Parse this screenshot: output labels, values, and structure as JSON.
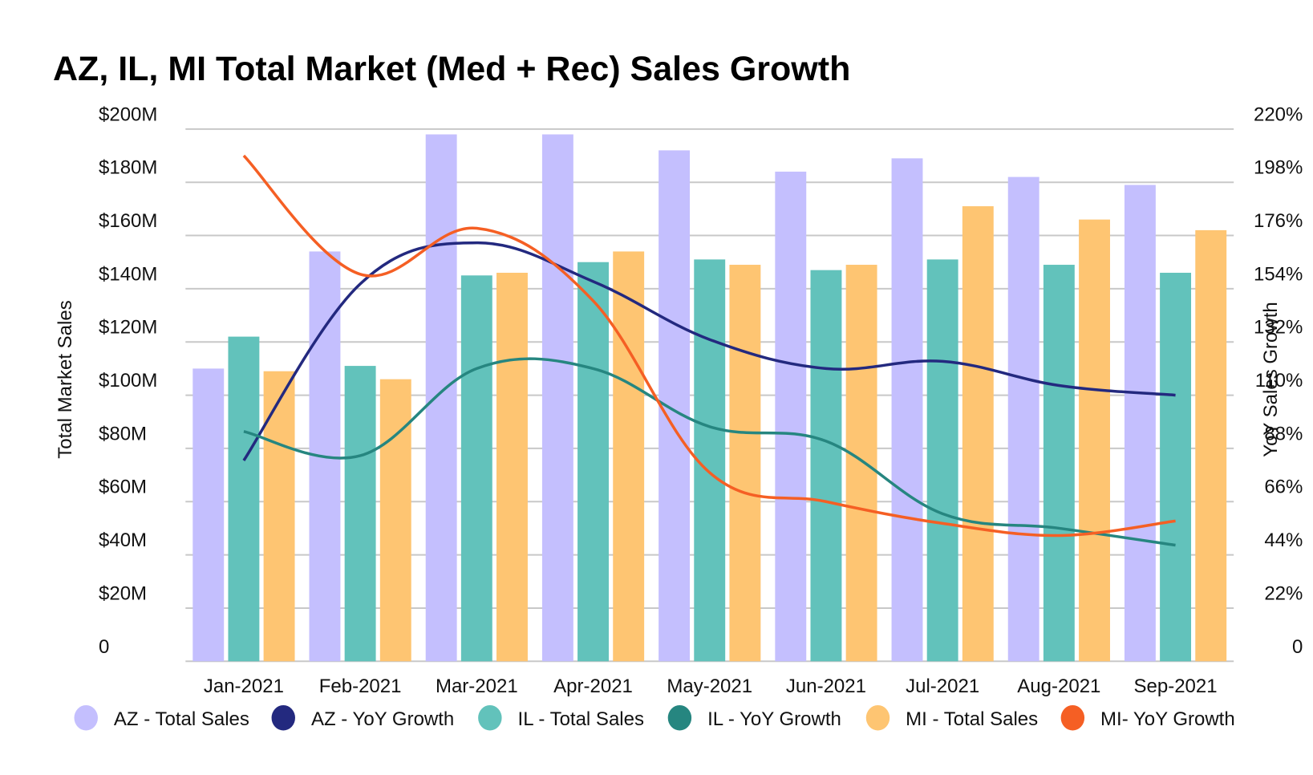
{
  "chart_data": {
    "type": "bar",
    "title": "AZ, IL, MI Total Market (Med + Rec) Sales Growth",
    "xlabel": "",
    "ylabel": "Total Market Sales",
    "y2label": "YoY Sales Growth",
    "ylim": [
      0,
      200
    ],
    "y2lim": [
      0,
      220
    ],
    "yticks": [
      "0",
      "$20M",
      "$40M",
      "$60M",
      "$80M",
      "$100M",
      "$120M",
      "$140M",
      "$160M",
      "$180M",
      "$200M"
    ],
    "y2ticks": [
      "0",
      "22%",
      "44%",
      "66%",
      "88%",
      "110%",
      "132%",
      "154%",
      "176%",
      "198%",
      "220%"
    ],
    "grid": true,
    "legend_position": "bottom",
    "categories": [
      "Jan-2021",
      "Feb-2021",
      "Mar-2021",
      "Apr-2021",
      "May-2021",
      "Jun-2021",
      "Jul-2021",
      "Aug-2021",
      "Sep-2021"
    ],
    "series": [
      {
        "name": "AZ - Total Sales",
        "kind": "bar",
        "axis": "left",
        "color": "#c4bffe",
        "values": [
          110,
          154,
          198,
          198,
          192,
          184,
          189,
          182,
          179
        ]
      },
      {
        "name": "AZ - YoY Growth",
        "kind": "line",
        "axis": "right",
        "color": "#23297f",
        "values": [
          83,
          156,
          173,
          157,
          133,
          121,
          124,
          114,
          110
        ]
      },
      {
        "name": "IL - Total Sales",
        "kind": "bar",
        "axis": "left",
        "color": "#62c2bb",
        "values": [
          122,
          111,
          145,
          150,
          151,
          147,
          151,
          149,
          146
        ]
      },
      {
        "name": "IL - YoY Growth",
        "kind": "line",
        "axis": "right",
        "color": "#268680",
        "values": [
          95,
          85,
          121,
          121,
          97,
          91,
          61,
          55,
          48
        ]
      },
      {
        "name": "MI - Total Sales",
        "kind": "bar",
        "axis": "left",
        "color": "#fec572",
        "values": [
          109,
          106,
          146,
          154,
          149,
          149,
          171,
          166,
          162
        ]
      },
      {
        "name": "MI- YoY Growth",
        "kind": "line",
        "axis": "right",
        "color": "#f55f24",
        "values": [
          209,
          160,
          179,
          149,
          78,
          66,
          57,
          52,
          58
        ]
      }
    ]
  }
}
